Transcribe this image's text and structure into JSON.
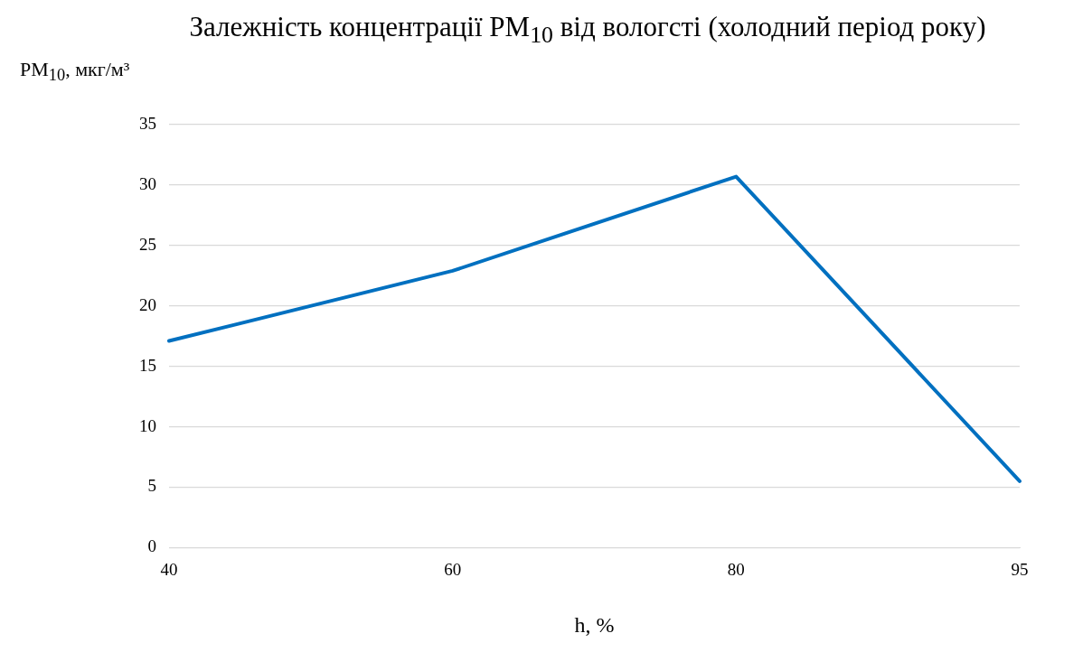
{
  "chart_data": {
    "type": "line",
    "title": "Залежність концентрації  PM$_{10}$ від вологсті (холодний період року)",
    "ylabel": "PM$_{10}$, мкг/м³",
    "xlabel": "h, %",
    "categories": [
      "40",
      "60",
      "80",
      "95"
    ],
    "series": [
      {
        "color": "#0070c0",
        "values": [
          17.1,
          22.9,
          30.7,
          5.5
        ]
      }
    ],
    "ylim": [
      0,
      35
    ],
    "yticks": [
      0,
      5,
      10,
      15,
      20,
      25,
      30,
      35
    ],
    "grid": "y",
    "marker": "none",
    "line_style": "solid",
    "legend": false
  }
}
